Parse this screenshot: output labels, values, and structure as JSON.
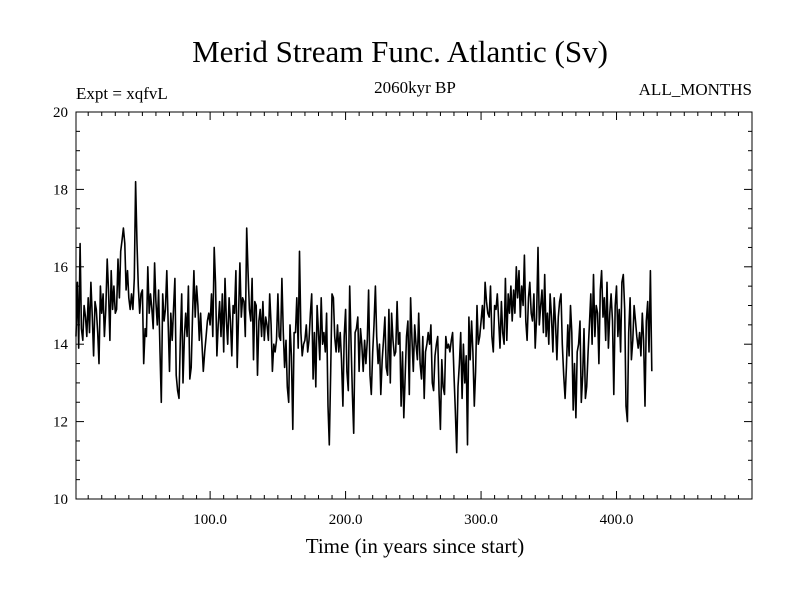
{
  "chart_data": {
    "type": "line",
    "title": "Merid Stream Func. Atlantic (Sv)",
    "subtitle_left": "Expt = xqfvL",
    "subtitle_center": "2060kyr BP",
    "subtitle_right": "ALL_MONTHS",
    "xlabel": "Time (in years since start)",
    "ylabel": "",
    "xlim": [
      1,
      500
    ],
    "ylim": [
      10,
      20
    ],
    "xticks": [
      100.0,
      200.0,
      300.0,
      400.0
    ],
    "xtick_labels": [
      "100.0",
      "200.0",
      "300.0",
      "400.0"
    ],
    "yticks": [
      10,
      12,
      14,
      16,
      18,
      20
    ],
    "ytick_labels": [
      "10",
      "12",
      "14",
      "16",
      "18",
      "20"
    ],
    "grid": false,
    "series": [
      {
        "name": "Merid Stream Func. Atlantic",
        "x_start": 1,
        "x_step": 1,
        "values": [
          14.2,
          15.6,
          13.9,
          16.6,
          14.4,
          14.1,
          15.0,
          14.7,
          14.2,
          15.2,
          14.3,
          15.6,
          14.7,
          13.7,
          15.1,
          14.9,
          14.3,
          13.5,
          15.5,
          14.8,
          15.3,
          14.2,
          14.9,
          16.2,
          15.4,
          14.1,
          15.9,
          14.9,
          15.5,
          14.8,
          14.9,
          16.2,
          15.2,
          16.4,
          16.7,
          17.0,
          16.6,
          15.4,
          15.9,
          15.2,
          14.9,
          15.3,
          14.9,
          15.7,
          18.2,
          16.6,
          15.5,
          14.8,
          15.3,
          15.4,
          13.5,
          14.4,
          14.2,
          16.0,
          14.8,
          15.3,
          14.9,
          14.4,
          16.1,
          15.1,
          14.5,
          15.4,
          13.8,
          12.5,
          15.3,
          14.6,
          14.9,
          15.9,
          14.6,
          13.3,
          14.8,
          14.1,
          14.9,
          15.7,
          13.2,
          12.8,
          12.6,
          14.1,
          15.3,
          13.0,
          14.2,
          14.8,
          14.2,
          15.5,
          13.1,
          13.4,
          14.7,
          15.9,
          14.7,
          15.5,
          15.0,
          14.1,
          14.8,
          14.0,
          13.3,
          13.8,
          14.2,
          14.6,
          14.8,
          14.5,
          15.3,
          14.2,
          16.5,
          15.6,
          13.7,
          14.5,
          15.1,
          14.2,
          15.3,
          13.8,
          15.7,
          14.6,
          14.0,
          15.2,
          14.6,
          13.7,
          15.0,
          14.8,
          15.9,
          13.4,
          14.8,
          16.1,
          14.7,
          15.2,
          15.1,
          14.2,
          17.0,
          15.9,
          14.9,
          14.6,
          15.7,
          13.6,
          15.1,
          15.0,
          13.2,
          14.6,
          14.9,
          14.2,
          15.1,
          14.1,
          14.7,
          14.5,
          14.1,
          15.3,
          14.5,
          13.3,
          14.0,
          13.8,
          14.1,
          15.3,
          14.2,
          14.1,
          15.7,
          14.3,
          13.4,
          14.1,
          12.9,
          12.5,
          14.5,
          13.7,
          11.8,
          14.3,
          14.3,
          15.2,
          13.9,
          16.4,
          14.3,
          13.7,
          14.0,
          14.1,
          14.5,
          13.8,
          14.1,
          14.8,
          15.3,
          13.1,
          14.3,
          12.9,
          15.0,
          14.3,
          13.6,
          15.2,
          14.0,
          14.3,
          13.8,
          14.8,
          12.4,
          11.4,
          13.3,
          15.3,
          15.2,
          14.2,
          13.8,
          14.5,
          13.8,
          14.3,
          13.6,
          12.4,
          14.2,
          14.9,
          13.3,
          12.8,
          15.5,
          14.1,
          12.7,
          11.7,
          14.3,
          14.4,
          14.7,
          13.3,
          14.4,
          14.0,
          13.3,
          14.1,
          13.5,
          14.1,
          15.4,
          13.2,
          12.7,
          13.8,
          14.5,
          15.5,
          14.2,
          13.5,
          14.0,
          12.7,
          13.6,
          14.1,
          14.7,
          13.4,
          13.2,
          14.9,
          13.0,
          14.8,
          14.1,
          13.7,
          13.8,
          15.1,
          14.0,
          14.3,
          12.4,
          13.8,
          12.1,
          13.2,
          14.2,
          14.6,
          12.7,
          15.2,
          14.1,
          13.3,
          14.5,
          14.0,
          13.6,
          14.8,
          13.5,
          13.1,
          14.2,
          12.6,
          13.8,
          14.0,
          14.3,
          14.0,
          14.5,
          13.0,
          12.8,
          13.7,
          14.0,
          14.2,
          12.7,
          11.8,
          13.6,
          12.9,
          12.7,
          14.2,
          13.9,
          14.0,
          13.8,
          14.1,
          14.3,
          13.2,
          12.3,
          11.2,
          12.9,
          13.5,
          14.3,
          12.6,
          14.0,
          13.0,
          13.7,
          11.4,
          14.7,
          13.6,
          14.6,
          13.8,
          12.4,
          13.3,
          15.0,
          14.0,
          14.2,
          14.6,
          15.0,
          14.4,
          15.6,
          15.1,
          14.8,
          14.7,
          15.5,
          14.2,
          13.8,
          15.0,
          14.9,
          15.3,
          14.6,
          13.9,
          15.1,
          14.3,
          14.0,
          15.7,
          14.1,
          15.3,
          14.8,
          15.5,
          14.6,
          15.4,
          14.8,
          16.0,
          15.2,
          15.9,
          14.7,
          15.5,
          15.0,
          16.3,
          14.6,
          14.1,
          15.2,
          15.6,
          14.8,
          14.6,
          15.3,
          13.9,
          14.7,
          16.5,
          14.5,
          15.0,
          15.4,
          14.3,
          15.8,
          14.2,
          14.8,
          14.0,
          15.3,
          14.7,
          13.8,
          15.2,
          14.5,
          13.6,
          14.7,
          15.1,
          15.3,
          14.0,
          13.2,
          12.6,
          13.4,
          14.5,
          13.7,
          15.0,
          14.3,
          12.3,
          13.5,
          12.1,
          13.8,
          14.0,
          14.6,
          12.5,
          13.2,
          14.4,
          12.6,
          12.9,
          13.8,
          14.5,
          15.3,
          14.0,
          15.8,
          14.2,
          15.0,
          14.8,
          13.5,
          15.4,
          15.9,
          14.7,
          15.2,
          14.1,
          15.6,
          13.9,
          14.8,
          15.3,
          14.6,
          12.7,
          15.0,
          15.5,
          14.2,
          14.9,
          13.8,
          15.6,
          15.8,
          14.9,
          12.4,
          12.0,
          14.3,
          15.2,
          13.6,
          14.1,
          15.0,
          14.6,
          14.2,
          13.9,
          14.3,
          13.7,
          14.8,
          14.1,
          12.4,
          14.6,
          15.1,
          13.8,
          15.9,
          13.3
        ]
      }
    ]
  }
}
